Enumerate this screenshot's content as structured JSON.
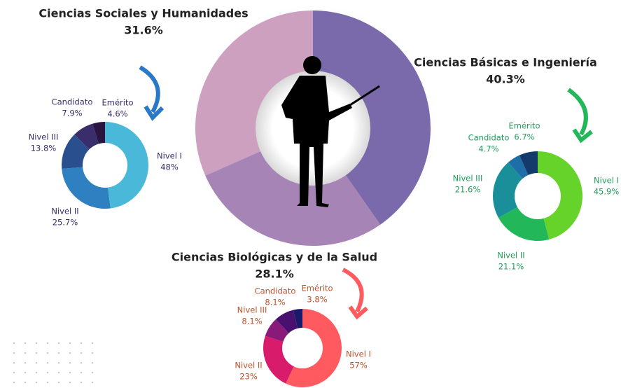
{
  "chart_data": [
    {
      "type": "donut",
      "categories": [
        "Ciencias Básicas e Ingeniería",
        "Ciencias Biológicas y de la Salud",
        "Ciencias Sociales y Humanidades"
      ],
      "values": [
        40.3,
        28.1,
        31.6
      ],
      "value_labels": [
        "40.3%",
        "28.1%",
        "31.6%"
      ],
      "colors": [
        "#7a6aab",
        "#a685b6",
        "#cda0c0"
      ]
    },
    {
      "type": "donut",
      "categories": [
        "Nivel I",
        "Nivel II",
        "Nivel III",
        "Candidato",
        "Emérito"
      ],
      "values": [
        45.9,
        21.1,
        21.6,
        4.7,
        6.7
      ],
      "value_labels": [
        "45.9%",
        "21.1%",
        "21.6%",
        "4.7%",
        "6.7%"
      ],
      "colors": [
        "#66d32a",
        "#22b85a",
        "#1a8f9a",
        "#1e6fa8",
        "#143a6b"
      ]
    },
    {
      "type": "donut",
      "categories": [
        "Nivel I",
        "Nivel II",
        "Nivel III",
        "Candidato",
        "Emérito"
      ],
      "values": [
        57,
        23,
        8.1,
        8.1,
        3.8
      ],
      "value_labels": [
        "57%",
        "23%",
        "8.1%",
        "8.1%",
        "3.8%"
      ],
      "colors": [
        "#ff5a5f",
        "#d81b6a",
        "#8a1a7a",
        "#4a1070",
        "#1a1a6b"
      ]
    },
    {
      "type": "donut",
      "categories": [
        "Nivel I",
        "Nivel II",
        "Nivel III",
        "Candidato",
        "Emérito"
      ],
      "values": [
        48,
        25.7,
        13.8,
        7.9,
        4.6
      ],
      "value_labels": [
        "48%",
        "25.7%",
        "13.8%",
        "7.9%",
        "4.6%"
      ],
      "colors": [
        "#4ab8d8",
        "#2f80c0",
        "#2a4f8f",
        "#3a2d6b",
        "#2a1440"
      ]
    }
  ]
}
